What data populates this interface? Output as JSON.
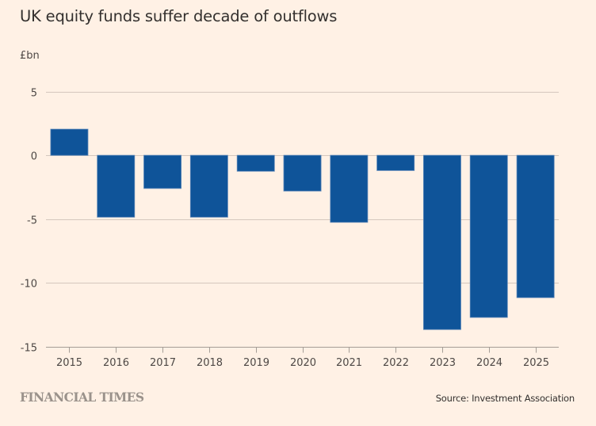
{
  "chart_data": {
    "type": "bar",
    "title": "UK equity funds suffer decade of outflows",
    "unit_label": "£bn",
    "xlabel": "",
    "ylabel": "£bn",
    "categories": [
      "2015",
      "2016",
      "2017",
      "2018",
      "2019",
      "2020",
      "2021",
      "2022",
      "2023",
      "2024",
      "2025"
    ],
    "values": [
      2.05,
      -4.85,
      -2.6,
      -4.85,
      -1.25,
      -2.8,
      -5.25,
      -1.2,
      -13.65,
      -12.7,
      -11.15
    ],
    "ylim": [
      -15,
      5
    ],
    "yticks": [
      5,
      0,
      -5,
      -10,
      -15
    ],
    "ytick_labels": [
      "5",
      "0",
      "-5",
      "-10",
      "-15"
    ],
    "grid": true,
    "legend": "none",
    "bar_color": "#0f5499",
    "gridline_color": "#d4c7bd",
    "axis_color": "#a59d96"
  },
  "footer": {
    "publisher": "FINANCIAL TIMES",
    "source": "Source: Investment Association"
  }
}
